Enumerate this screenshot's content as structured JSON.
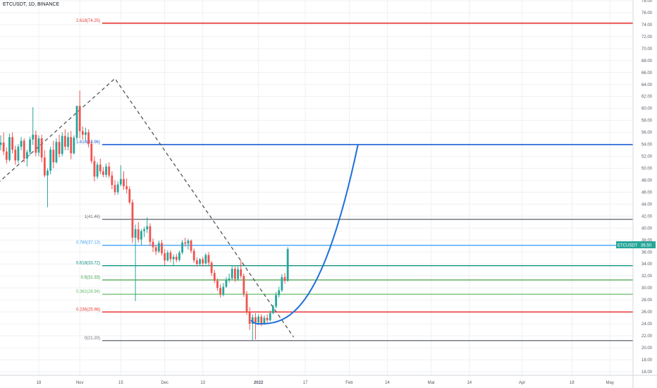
{
  "header": {
    "title": "ETCUSDT, 1D, BINANCE"
  },
  "colors": {
    "up": "#26a69a",
    "down": "#ef5350",
    "grid": "#eef0f3",
    "red_line": "#e53935",
    "blue_line": "#1e5fd6",
    "gray_line": "#6b6f77",
    "light_blue": "#42a5f5",
    "teal": "#00897b",
    "green": "#43a047",
    "light_green": "#66bb6a",
    "curve": "#1e6fd9",
    "dash": "#555555"
  },
  "price_tag": {
    "symbol": "ETCUSDT",
    "value": "36.50"
  },
  "chart_data": {
    "type": "candlestick",
    "y_range": [
      15.4,
      78
    ],
    "y_ticks": [
      "16.00",
      "18.00",
      "20.00",
      "22.00",
      "24.00",
      "26.00",
      "28.00",
      "30.00",
      "32.00",
      "34.00",
      "36.00",
      "38.00",
      "40.00",
      "42.00",
      "44.00",
      "46.00",
      "48.00",
      "50.00",
      "52.00",
      "54.00",
      "56.00",
      "58.00",
      "60.00",
      "62.00",
      "64.00",
      "66.00",
      "68.00",
      "70.00",
      "72.00",
      "74.00",
      "76.00",
      "78.00"
    ],
    "x_ticks": [
      {
        "label": "18",
        "day": 0
      },
      {
        "label": "Nov",
        "day": 14
      },
      {
        "label": "15",
        "day": 28
      },
      {
        "label": "Dec",
        "day": 43
      },
      {
        "label": "13",
        "day": 56
      },
      {
        "label": "2022",
        "day": 75
      },
      {
        "label": "17",
        "day": 91
      },
      {
        "label": "Feb",
        "day": 106
      },
      {
        "label": "14",
        "day": 119
      },
      {
        "label": "Mar",
        "day": 134
      },
      {
        "label": "14",
        "day": 147
      },
      {
        "label": "Apr",
        "day": 165
      },
      {
        "label": "18",
        "day": 182
      },
      {
        "label": "May",
        "day": 195
      }
    ],
    "fib_levels": [
      {
        "label": "2.618(74.25)",
        "value": 74.25,
        "color": "#e53935"
      },
      {
        "label": "1.618(53.96)",
        "value": 53.96,
        "color": "#1e5fd6"
      },
      {
        "label": "1(41.46)",
        "value": 41.46,
        "color": "#6b6f77"
      },
      {
        "label": "0.786(37.13)",
        "value": 37.13,
        "color": "#42a5f5"
      },
      {
        "label": "0.618(33.72)",
        "value": 33.72,
        "color": "#00897b"
      },
      {
        "label": "0.5(31.33)",
        "value": 31.33,
        "color": "#43a047"
      },
      {
        "label": "0.382(28.94)",
        "value": 28.94,
        "color": "#66bb6a"
      },
      {
        "label": "0.236(25.98)",
        "value": 25.98,
        "color": "#e53935"
      },
      {
        "label": "0(21.20)",
        "value": 21.2,
        "color": "#6b6f77"
      }
    ],
    "candles": [
      [
        53.5,
        54.9,
        52.4,
        53.9
      ],
      [
        53.9,
        55.5,
        53.0,
        54.3
      ],
      [
        54.3,
        56.0,
        52.2,
        52.8
      ],
      [
        52.8,
        53.5,
        50.8,
        51.4
      ],
      [
        51.4,
        55.8,
        51.1,
        55.2
      ],
      [
        55.2,
        56.0,
        52.5,
        53.1
      ],
      [
        53.1,
        53.8,
        50.6,
        51.3
      ],
      [
        51.3,
        54.0,
        50.9,
        53.6
      ],
      [
        53.6,
        55.2,
        53.0,
        54.6
      ],
      [
        54.6,
        55.0,
        51.0,
        51.6
      ],
      [
        51.6,
        53.1,
        50.3,
        52.7
      ],
      [
        52.7,
        55.3,
        52.1,
        54.8
      ],
      [
        54.8,
        60.2,
        53.9,
        55.6
      ],
      [
        55.6,
        56.3,
        52.0,
        52.6
      ],
      [
        52.6,
        55.5,
        52.0,
        55.0
      ],
      [
        55.0,
        55.6,
        51.0,
        51.8
      ],
      [
        51.8,
        53.0,
        48.5,
        48.8
      ],
      [
        48.8,
        50.0,
        43.5,
        49.6
      ],
      [
        49.6,
        53.6,
        49.0,
        53.1
      ],
      [
        53.1,
        54.6,
        50.0,
        51.0
      ],
      [
        51.0,
        55.0,
        50.8,
        54.4
      ],
      [
        54.4,
        55.6,
        51.8,
        52.4
      ],
      [
        52.4,
        56.0,
        52.0,
        55.4
      ],
      [
        55.4,
        56.5,
        53.0,
        53.6
      ],
      [
        53.6,
        56.0,
        53.0,
        55.2
      ],
      [
        55.2,
        56.2,
        51.5,
        52.5
      ],
      [
        52.5,
        55.5,
        52.3,
        55.1
      ],
      [
        55.1,
        60.5,
        54.8,
        60.4
      ],
      [
        60.4,
        63.0,
        55.0,
        56.2
      ],
      [
        56.2,
        57.0,
        54.8,
        55.6
      ],
      [
        55.6,
        56.8,
        54.6,
        56.0
      ],
      [
        56.0,
        56.5,
        53.5,
        54.1
      ],
      [
        54.1,
        54.6,
        50.8,
        51.2
      ],
      [
        51.2,
        52.0,
        47.8,
        48.6
      ],
      [
        48.6,
        51.0,
        48.2,
        50.6
      ],
      [
        50.6,
        51.6,
        49.0,
        49.5
      ],
      [
        49.5,
        50.2,
        48.5,
        48.9
      ],
      [
        48.9,
        50.8,
        48.5,
        50.3
      ],
      [
        50.3,
        51.0,
        48.4,
        48.8
      ],
      [
        48.8,
        49.5,
        46.5,
        47.2
      ],
      [
        47.2,
        48.0,
        45.5,
        46.0
      ],
      [
        46.0,
        47.8,
        45.6,
        47.3
      ],
      [
        47.3,
        50.5,
        47.0,
        48.2
      ],
      [
        48.2,
        49.5,
        46.4,
        47.0
      ],
      [
        47.0,
        48.3,
        45.8,
        46.5
      ],
      [
        46.5,
        47.0,
        44.0,
        44.3
      ],
      [
        44.3,
        44.8,
        37.5,
        38.4
      ],
      [
        38.4,
        40.6,
        27.8,
        39.8
      ],
      [
        39.8,
        41.0,
        37.6,
        38.1
      ],
      [
        38.1,
        39.8,
        37.2,
        39.5
      ],
      [
        39.5,
        40.2,
        38.5,
        39.8
      ],
      [
        39.8,
        41.8,
        39.2,
        40.3
      ],
      [
        40.3,
        40.8,
        37.0,
        37.7
      ],
      [
        37.7,
        38.3,
        36.0,
        36.8
      ],
      [
        36.8,
        37.2,
        35.5,
        36.1
      ],
      [
        36.1,
        37.9,
        35.8,
        37.5
      ],
      [
        37.5,
        38.0,
        35.4,
        35.8
      ],
      [
        35.8,
        36.5,
        33.8,
        34.6
      ],
      [
        34.6,
        36.3,
        34.4,
        35.9
      ],
      [
        35.9,
        36.3,
        34.3,
        34.8
      ],
      [
        34.8,
        35.6,
        33.8,
        35.2
      ],
      [
        35.2,
        35.7,
        34.3,
        34.7
      ],
      [
        34.7,
        36.2,
        34.4,
        35.9
      ],
      [
        35.9,
        38.0,
        35.6,
        37.6
      ],
      [
        37.6,
        38.4,
        36.9,
        37.4
      ],
      [
        37.4,
        38.2,
        36.4,
        37.9
      ],
      [
        37.9,
        38.1,
        35.8,
        36.2
      ],
      [
        36.2,
        36.6,
        34.2,
        34.6
      ],
      [
        34.6,
        35.1,
        33.6,
        34.0
      ],
      [
        34.0,
        35.0,
        33.7,
        34.8
      ],
      [
        34.8,
        35.2,
        33.6,
        34.1
      ],
      [
        34.1,
        35.8,
        33.9,
        35.5
      ],
      [
        35.5,
        36.0,
        33.8,
        34.2
      ],
      [
        34.2,
        34.5,
        32.0,
        32.5
      ],
      [
        32.5,
        33.0,
        30.8,
        31.2
      ],
      [
        31.2,
        31.6,
        29.5,
        30.0
      ],
      [
        30.0,
        30.6,
        28.4,
        28.9
      ],
      [
        28.9,
        30.8,
        28.6,
        30.2
      ],
      [
        30.2,
        31.8,
        30.0,
        31.4
      ],
      [
        31.4,
        32.4,
        30.9,
        31.6
      ],
      [
        31.6,
        33.8,
        31.4,
        33.2
      ],
      [
        33.2,
        33.6,
        31.0,
        31.5
      ],
      [
        31.5,
        33.6,
        31.2,
        33.1
      ],
      [
        33.1,
        34.6,
        31.6,
        32.0
      ],
      [
        32.0,
        32.4,
        28.5,
        29.0
      ],
      [
        29.0,
        29.5,
        25.5,
        26.0
      ],
      [
        26.0,
        26.8,
        23.0,
        24.0
      ],
      [
        24.0,
        25.6,
        21.3,
        25.1
      ],
      [
        25.1,
        25.8,
        21.4,
        24.2
      ],
      [
        24.2,
        25.6,
        23.8,
        25.2
      ],
      [
        25.2,
        25.6,
        23.6,
        24.0
      ],
      [
        24.0,
        25.4,
        23.8,
        25.0
      ],
      [
        25.0,
        25.6,
        24.2,
        24.6
      ],
      [
        24.6,
        26.2,
        24.4,
        25.8
      ],
      [
        25.8,
        27.2,
        25.6,
        26.9
      ],
      [
        26.9,
        29.3,
        26.6,
        28.8
      ],
      [
        28.8,
        30.2,
        28.4,
        29.6
      ],
      [
        29.6,
        32.3,
        29.3,
        31.8
      ],
      [
        31.8,
        32.5,
        30.7,
        31.2
      ],
      [
        31.2,
        36.8,
        31.0,
        36.5
      ]
    ],
    "curve": {
      "start_day": 89,
      "start_value": 24.0,
      "end_day": 123,
      "end_value": 54.0
    },
    "dashed_path": [
      [
        -14,
        47.5
      ],
      [
        26,
        65.0
      ],
      [
        87,
        21.8
      ]
    ]
  }
}
